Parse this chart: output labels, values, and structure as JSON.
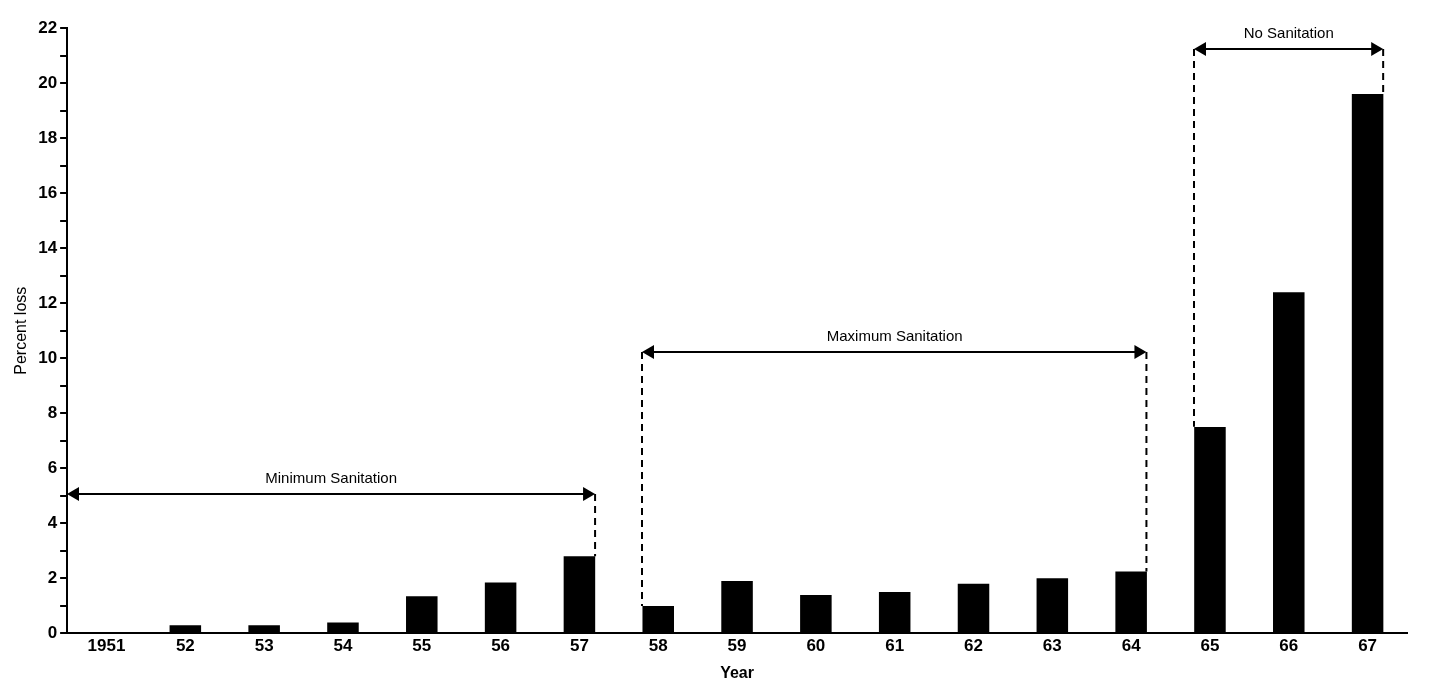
{
  "chart_data": {
    "type": "bar",
    "xlabel": "Year",
    "ylabel": "Percent loss",
    "categories": [
      "1951",
      "52",
      "53",
      "54",
      "55",
      "56",
      "57",
      "58",
      "59",
      "60",
      "61",
      "62",
      "63",
      "64",
      "65",
      "66",
      "67"
    ],
    "values": [
      0,
      0.3,
      0.3,
      0.4,
      1.35,
      1.85,
      2.8,
      1.0,
      1.9,
      1.4,
      1.5,
      1.8,
      2.0,
      2.25,
      7.5,
      12.4,
      19.6
    ],
    "color": "#000000",
    "ylim": [
      0,
      22
    ],
    "yticks": [
      0,
      {
        "value": 1,
        "label": null
      },
      2,
      {
        "value": 3,
        "label": null
      },
      4,
      {
        "value": 5,
        "label": null
      },
      6,
      {
        "value": 7,
        "label": null
      },
      8,
      {
        "value": 9,
        "label": null
      },
      10,
      {
        "value": 11,
        "label": null
      },
      12,
      {
        "value": 13,
        "label": null
      },
      14,
      {
        "value": 15,
        "label": null
      },
      16,
      {
        "value": 17,
        "label": null
      },
      18,
      {
        "value": 19,
        "label": null
      },
      20,
      {
        "value": 21,
        "label": null
      },
      22
    ],
    "annotations": [
      "Minimum Sanitation",
      "Maximum Sanitation",
      "No Sanitation"
    ],
    "grid": false,
    "legend": false
  }
}
